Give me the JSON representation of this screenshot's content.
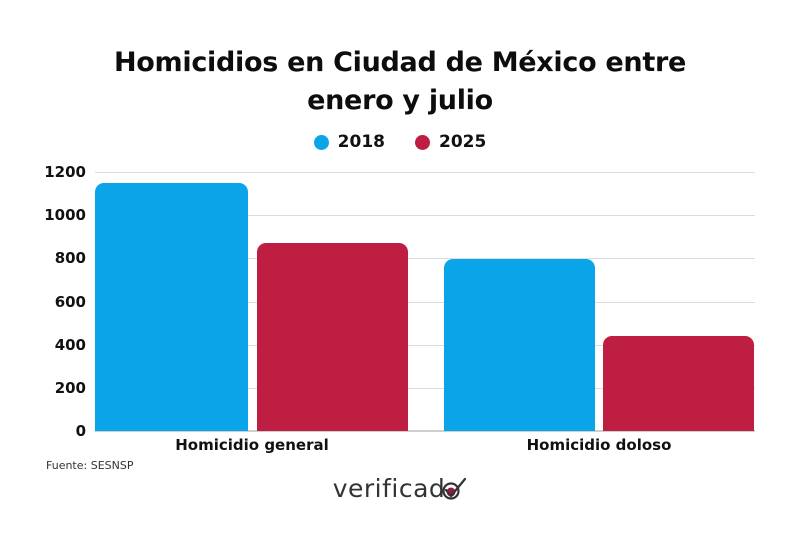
{
  "title_line1": "Homicidios en Ciudad de México entre",
  "title_line2": "enero y julio",
  "legend": [
    {
      "label": "2018",
      "color": "#0aa5e8"
    },
    {
      "label": "2025",
      "color": "#be1e42"
    }
  ],
  "source": "Fuente: SESNSP",
  "logo_text": "verificad",
  "colors": {
    "series_2018": "#0aa5e8",
    "series_2025": "#be1e42",
    "grid": "#dcdcdc",
    "logo_accent": "#9b1b3f"
  },
  "y_ticks": [
    "1200",
    "1000",
    "800",
    "600",
    "400",
    "200",
    "0"
  ],
  "chart_data": {
    "type": "bar",
    "title": "Homicidios en Ciudad de México entre enero y julio",
    "categories": [
      "Homicidio general",
      "Homicidio doloso"
    ],
    "series": [
      {
        "name": "2018",
        "values": [
          1150,
          795
        ],
        "color": "#0aa5e8"
      },
      {
        "name": "2025",
        "values": [
          870,
          440
        ],
        "color": "#be1e42"
      }
    ],
    "xlabel": "",
    "ylabel": "",
    "ylim": [
      0,
      1200
    ],
    "yticks": [
      0,
      200,
      400,
      600,
      800,
      1000,
      1200
    ],
    "grid": true,
    "legend_position": "top",
    "source": "Fuente: SESNSP"
  }
}
